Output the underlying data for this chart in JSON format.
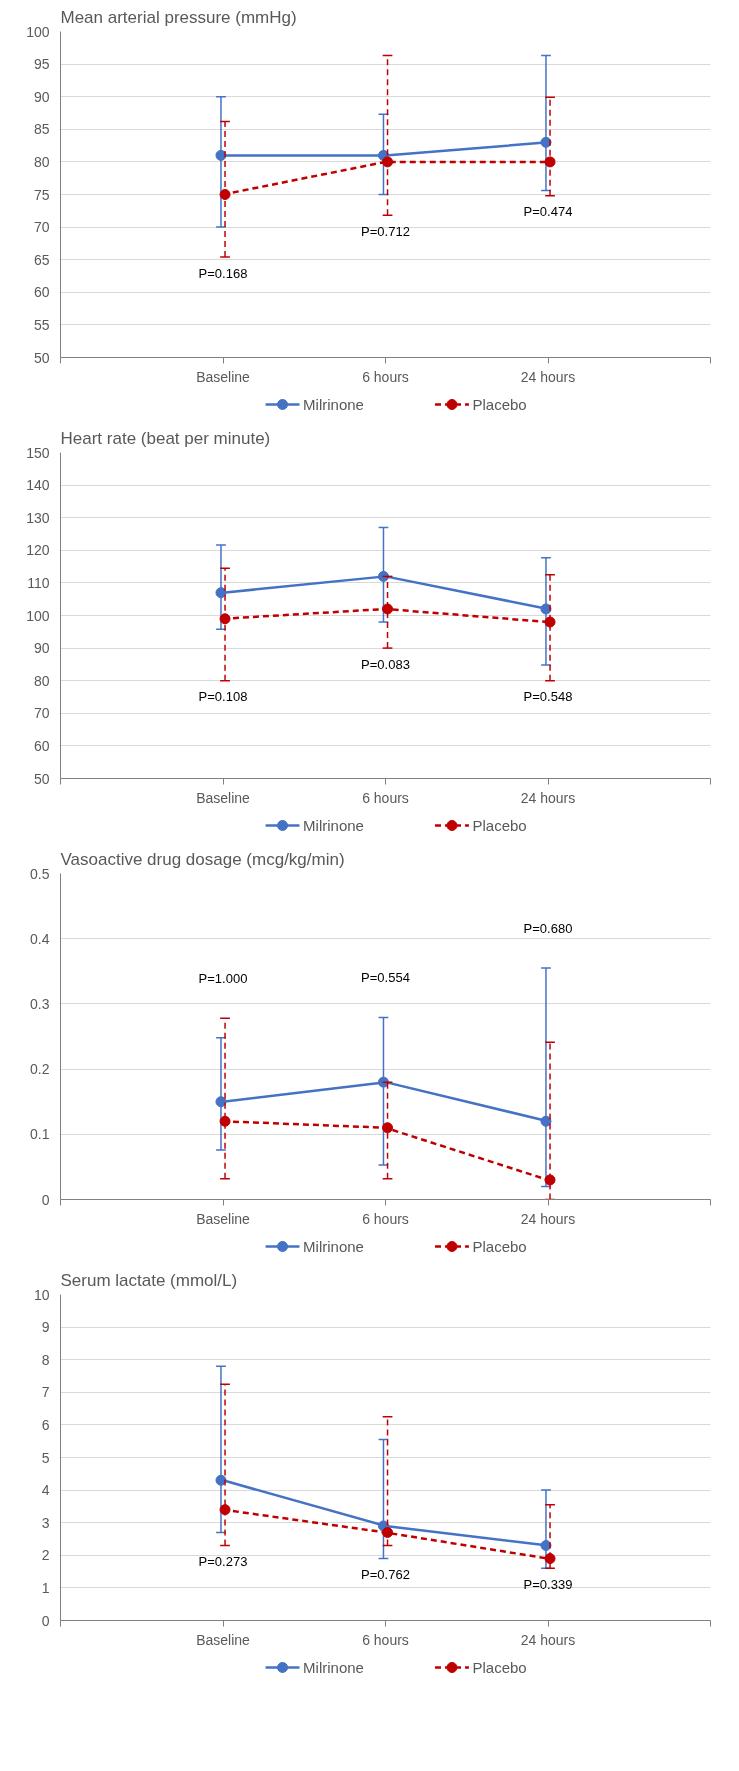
{
  "chart_data": [
    {
      "type": "line",
      "title": "Mean arterial pressure (mmHg)",
      "categories": [
        null,
        "Baseline",
        "6 hours",
        "24 hours",
        null
      ],
      "ylim": [
        50,
        100
      ],
      "yticks": [
        50,
        55,
        60,
        65,
        70,
        75,
        80,
        85,
        90,
        95,
        100
      ],
      "grid": "y",
      "legend": "bottom",
      "marker": "circle",
      "series": [
        {
          "name": "Milrinone",
          "color": "#4472c4",
          "line_style": "solid",
          "values": [
            null,
            81,
            81,
            83,
            null
          ],
          "errors": [
            null,
            [
              70,
              90
            ],
            [
              75,
              87.3
            ],
            [
              75.6,
              96.3
            ],
            null
          ]
        },
        {
          "name": "Placebo",
          "color": "#c00000",
          "line_style": "dashed",
          "values": [
            null,
            75,
            80,
            80,
            null
          ],
          "errors": [
            null,
            [
              65.4,
              86.2
            ],
            [
              71.8,
              96.3
            ],
            [
              74.8,
              89.9
            ],
            null
          ]
        }
      ],
      "annotations": [
        "P=0.168",
        "P=0.712",
        "P=0.474"
      ]
    },
    {
      "type": "line",
      "title": "Heart rate (beat per minute)",
      "categories": [
        null,
        "Baseline",
        "6 hours",
        "24 hours",
        null
      ],
      "ylim": [
        50,
        150
      ],
      "yticks": [
        50,
        60,
        70,
        80,
        90,
        100,
        110,
        120,
        130,
        140,
        150
      ],
      "grid": "y",
      "legend": "bottom",
      "marker": "circle",
      "series": [
        {
          "name": "Milrinone",
          "color": "#4472c4",
          "line_style": "solid",
          "values": [
            null,
            107,
            112,
            102,
            null
          ],
          "errors": [
            null,
            [
              95.8,
              121.6
            ],
            [
              98,
              127
            ],
            [
              84.8,
              117.7
            ],
            null
          ]
        },
        {
          "name": "Placebo",
          "color": "#c00000",
          "line_style": "dashed",
          "values": [
            null,
            99,
            102,
            98,
            null
          ],
          "errors": [
            null,
            [
              80,
              114.5
            ],
            [
              90,
              112
            ],
            [
              80,
              112.5
            ],
            null
          ]
        }
      ],
      "annotations": [
        "P=0.108",
        "P=0.083",
        "P=0.548"
      ]
    },
    {
      "type": "line",
      "title": "Vasoactive drug dosage (mcg/kg/min)",
      "categories": [
        null,
        "Baseline",
        "6 hours",
        "24 hours",
        null
      ],
      "ylim": [
        0,
        0.5
      ],
      "yticks": [
        0,
        0.1,
        0.2,
        0.3,
        0.4,
        0.5
      ],
      "grid": "y",
      "legend": "bottom",
      "marker": "circle",
      "series": [
        {
          "name": "Milrinone",
          "color": "#4472c4",
          "line_style": "solid",
          "values": [
            null,
            0.15,
            0.18,
            0.12,
            null
          ],
          "errors": [
            null,
            [
              0.076,
              0.248
            ],
            [
              0.053,
              0.279
            ],
            [
              0.02,
              0.355
            ],
            null
          ]
        },
        {
          "name": "Placebo",
          "color": "#c00000",
          "line_style": "dashed",
          "values": [
            null,
            0.12,
            0.11,
            0.03,
            null
          ],
          "errors": [
            null,
            [
              0.032,
              0.278
            ],
            [
              0.032,
              0.18
            ],
            [
              0,
              0.241
            ],
            null
          ]
        }
      ],
      "annotations": [
        "P=1.000",
        "P=0.554",
        "P=0.680"
      ]
    },
    {
      "type": "line",
      "title": "Serum lactate (mmol/L)",
      "categories": [
        null,
        "Baseline",
        "6 hours",
        "24 hours",
        null
      ],
      "ylim": [
        0,
        10
      ],
      "yticks": [
        0,
        1,
        2,
        3,
        4,
        5,
        6,
        7,
        8,
        9,
        10
      ],
      "grid": "y",
      "legend": "bottom",
      "marker": "circle",
      "series": [
        {
          "name": "Milrinone",
          "color": "#4472c4",
          "line_style": "solid",
          "values": [
            null,
            4.3,
            2.9,
            2.3,
            null
          ],
          "errors": [
            null,
            [
              2.7,
              7.8
            ],
            [
              1.9,
              5.55
            ],
            [
              1.6,
              4.0
            ],
            null
          ]
        },
        {
          "name": "Placebo",
          "color": "#c00000",
          "line_style": "dashed",
          "values": [
            null,
            3.4,
            2.7,
            1.9,
            null
          ],
          "errors": [
            null,
            [
              2.3,
              7.25
            ],
            [
              2.3,
              6.25
            ],
            [
              1.6,
              3.55
            ],
            null
          ]
        }
      ],
      "annotations": [
        "P=0.273",
        "P=0.762",
        "P=0.339"
      ]
    }
  ]
}
